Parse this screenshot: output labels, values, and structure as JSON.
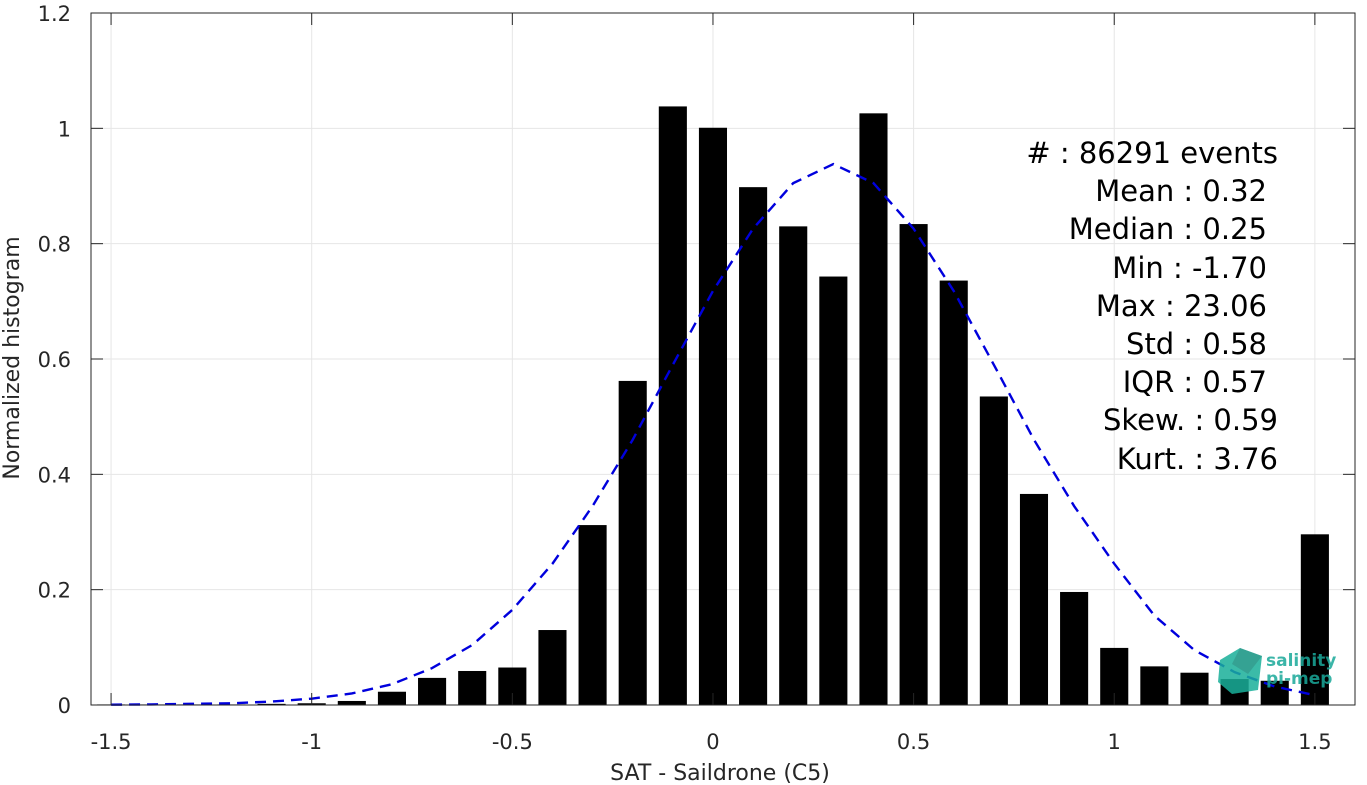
{
  "chart_data": {
    "type": "bar",
    "title": "",
    "xlabel": "SAT - Saildrone (C5)",
    "ylabel": "Normalized histogram",
    "xlim": [
      -1.55,
      1.6
    ],
    "ylim": [
      0,
      1.2
    ],
    "xticks": [
      -1.5,
      -1,
      -0.5,
      0,
      0.5,
      1,
      1.5
    ],
    "xtick_labels": [
      "-1.5",
      "-1",
      "-0.5",
      "0",
      "0.5",
      "1",
      "1.5"
    ],
    "yticks": [
      0,
      0.2,
      0.4,
      0.6,
      0.8,
      1,
      1.2
    ],
    "ytick_labels": [
      "0",
      "0.2",
      "0.4",
      "0.6",
      "0.8",
      "1",
      "1.2"
    ],
    "grid": true,
    "bar_color": "#000000",
    "bars": {
      "x": [
        -1.5,
        -1.4,
        -1.3,
        -1.2,
        -1.1,
        -1.0,
        -0.9,
        -0.8,
        -0.7,
        -0.6,
        -0.5,
        -0.4,
        -0.3,
        -0.2,
        -0.1,
        0.0,
        0.1,
        0.2,
        0.3,
        0.4,
        0.5,
        0.6,
        0.7,
        0.8,
        0.9,
        1.0,
        1.1,
        1.2,
        1.3,
        1.4,
        1.5
      ],
      "values": [
        0.001,
        0.001,
        0.001,
        0.001,
        0.002,
        0.003,
        0.007,
        0.023,
        0.047,
        0.059,
        0.065,
        0.13,
        0.312,
        0.562,
        1.038,
        1.001,
        0.898,
        0.83,
        0.743,
        1.026,
        0.834,
        0.736,
        0.535,
        0.366,
        0.196,
        0.099,
        0.067,
        0.056,
        0.045,
        0.042,
        0.296
      ]
    },
    "fit_curve": {
      "style": "dashed",
      "color": "#0000dd",
      "x": [
        -1.5,
        -1.4,
        -1.3,
        -1.2,
        -1.1,
        -1.0,
        -0.9,
        -0.8,
        -0.7,
        -0.6,
        -0.5,
        -0.4,
        -0.3,
        -0.2,
        -0.1,
        0.0,
        0.1,
        0.2,
        0.3,
        0.4,
        0.5,
        0.6,
        0.7,
        0.8,
        0.9,
        1.0,
        1.1,
        1.2,
        1.3,
        1.4,
        1.5
      ],
      "values": [
        0.0005,
        0.001,
        0.002,
        0.003,
        0.006,
        0.011,
        0.02,
        0.036,
        0.064,
        0.104,
        0.165,
        0.245,
        0.345,
        0.46,
        0.59,
        0.718,
        0.826,
        0.905,
        0.938,
        0.905,
        0.826,
        0.718,
        0.59,
        0.46,
        0.345,
        0.245,
        0.155,
        0.095,
        0.057,
        0.032,
        0.017
      ]
    }
  },
  "stats": {
    "events": "#  : 86291 events",
    "mean": "Mean : 0.32",
    "median": "Median : 0.25",
    "min": "Min : -1.70",
    "max": "Max : 23.06",
    "std": "Std : 0.58",
    "iqr": "IQR : 0.57",
    "skew": "Skew. : 0.59",
    "kurt": "Kurt. : 3.76"
  },
  "logo": {
    "line1": "salinity",
    "line2": "pi-mep",
    "color_text": "#1aa99a",
    "color_shape": "#19b09a"
  }
}
